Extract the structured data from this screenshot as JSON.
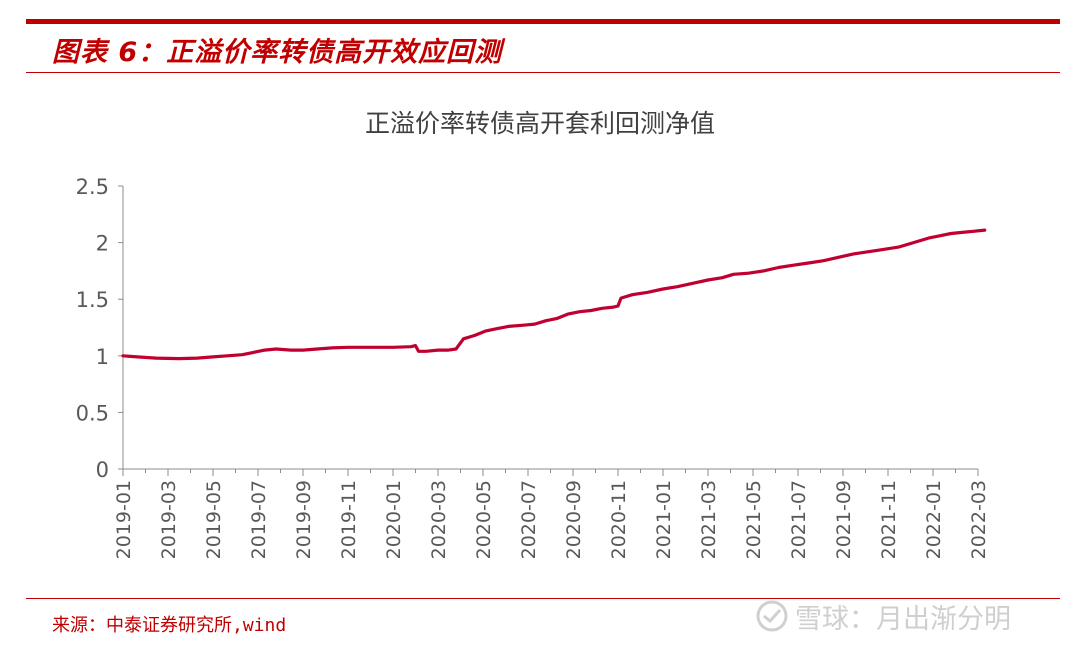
{
  "header": {
    "figure_title": "图表 6：正溢价率转债高开效应回测"
  },
  "chart_data": {
    "type": "line",
    "title": "正溢价率转债高开套利回测净值",
    "xlabel": "",
    "ylabel": "",
    "ylim": [
      0,
      2.5
    ],
    "yticks": [
      "0",
      "0.5",
      "1",
      "1.5",
      "2",
      "2.5"
    ],
    "xticks": [
      "2019-01",
      "2019-03",
      "2019-05",
      "2019-07",
      "2019-09",
      "2019-11",
      "2020-01",
      "2020-03",
      "2020-05",
      "2020-07",
      "2020-09",
      "2020-11",
      "2021-01",
      "2021-03",
      "2021-05",
      "2021-07",
      "2021-09",
      "2021-11",
      "2022-01",
      "2022-03"
    ],
    "grid": false,
    "legend": "none",
    "series": [
      {
        "color": "#c00030",
        "x": [
          "2019-01-01",
          "2019-01-20",
          "2019-02-15",
          "2019-03-15",
          "2019-04-10",
          "2019-05-01",
          "2019-05-20",
          "2019-06-10",
          "2019-06-25",
          "2019-07-10",
          "2019-07-25",
          "2019-08-15",
          "2019-09-01",
          "2019-09-20",
          "2019-10-10",
          "2019-11-01",
          "2019-12-01",
          "2020-01-01",
          "2020-01-25",
          "2020-02-01",
          "2020-02-05",
          "2020-02-15",
          "2020-03-01",
          "2020-03-15",
          "2020-03-25",
          "2020-04-05",
          "2020-04-20",
          "2020-05-05",
          "2020-05-20",
          "2020-06-05",
          "2020-06-25",
          "2020-07-10",
          "2020-07-25",
          "2020-08-10",
          "2020-08-25",
          "2020-09-10",
          "2020-09-25",
          "2020-10-10",
          "2020-10-25",
          "2020-11-01",
          "2020-11-05",
          "2020-11-20",
          "2020-12-10",
          "2021-01-01",
          "2021-01-20",
          "2021-02-10",
          "2021-03-01",
          "2021-03-20",
          "2021-04-05",
          "2021-04-25",
          "2021-05-15",
          "2021-06-05",
          "2021-06-25",
          "2021-07-15",
          "2021-08-05",
          "2021-08-25",
          "2021-09-15",
          "2021-10-05",
          "2021-10-25",
          "2021-11-15",
          "2021-12-05",
          "2021-12-25",
          "2022-01-10",
          "2022-01-25",
          "2022-02-10",
          "2022-02-25",
          "2022-03-10"
        ],
        "y": [
          1.0,
          0.99,
          0.98,
          0.975,
          0.98,
          0.99,
          1.0,
          1.01,
          1.03,
          1.05,
          1.06,
          1.05,
          1.05,
          1.06,
          1.07,
          1.075,
          1.075,
          1.075,
          1.08,
          1.09,
          1.04,
          1.04,
          1.05,
          1.05,
          1.06,
          1.15,
          1.18,
          1.22,
          1.24,
          1.26,
          1.27,
          1.28,
          1.31,
          1.33,
          1.37,
          1.39,
          1.4,
          1.42,
          1.43,
          1.44,
          1.51,
          1.54,
          1.56,
          1.59,
          1.61,
          1.64,
          1.67,
          1.69,
          1.72,
          1.73,
          1.75,
          1.78,
          1.8,
          1.82,
          1.84,
          1.87,
          1.9,
          1.92,
          1.94,
          1.96,
          2.0,
          2.04,
          2.06,
          2.08,
          2.09,
          2.1,
          2.11
        ]
      }
    ]
  },
  "footer": {
    "source": "来源：中泰证券研究所,wind",
    "watermark": "雪球：月出渐分明"
  }
}
